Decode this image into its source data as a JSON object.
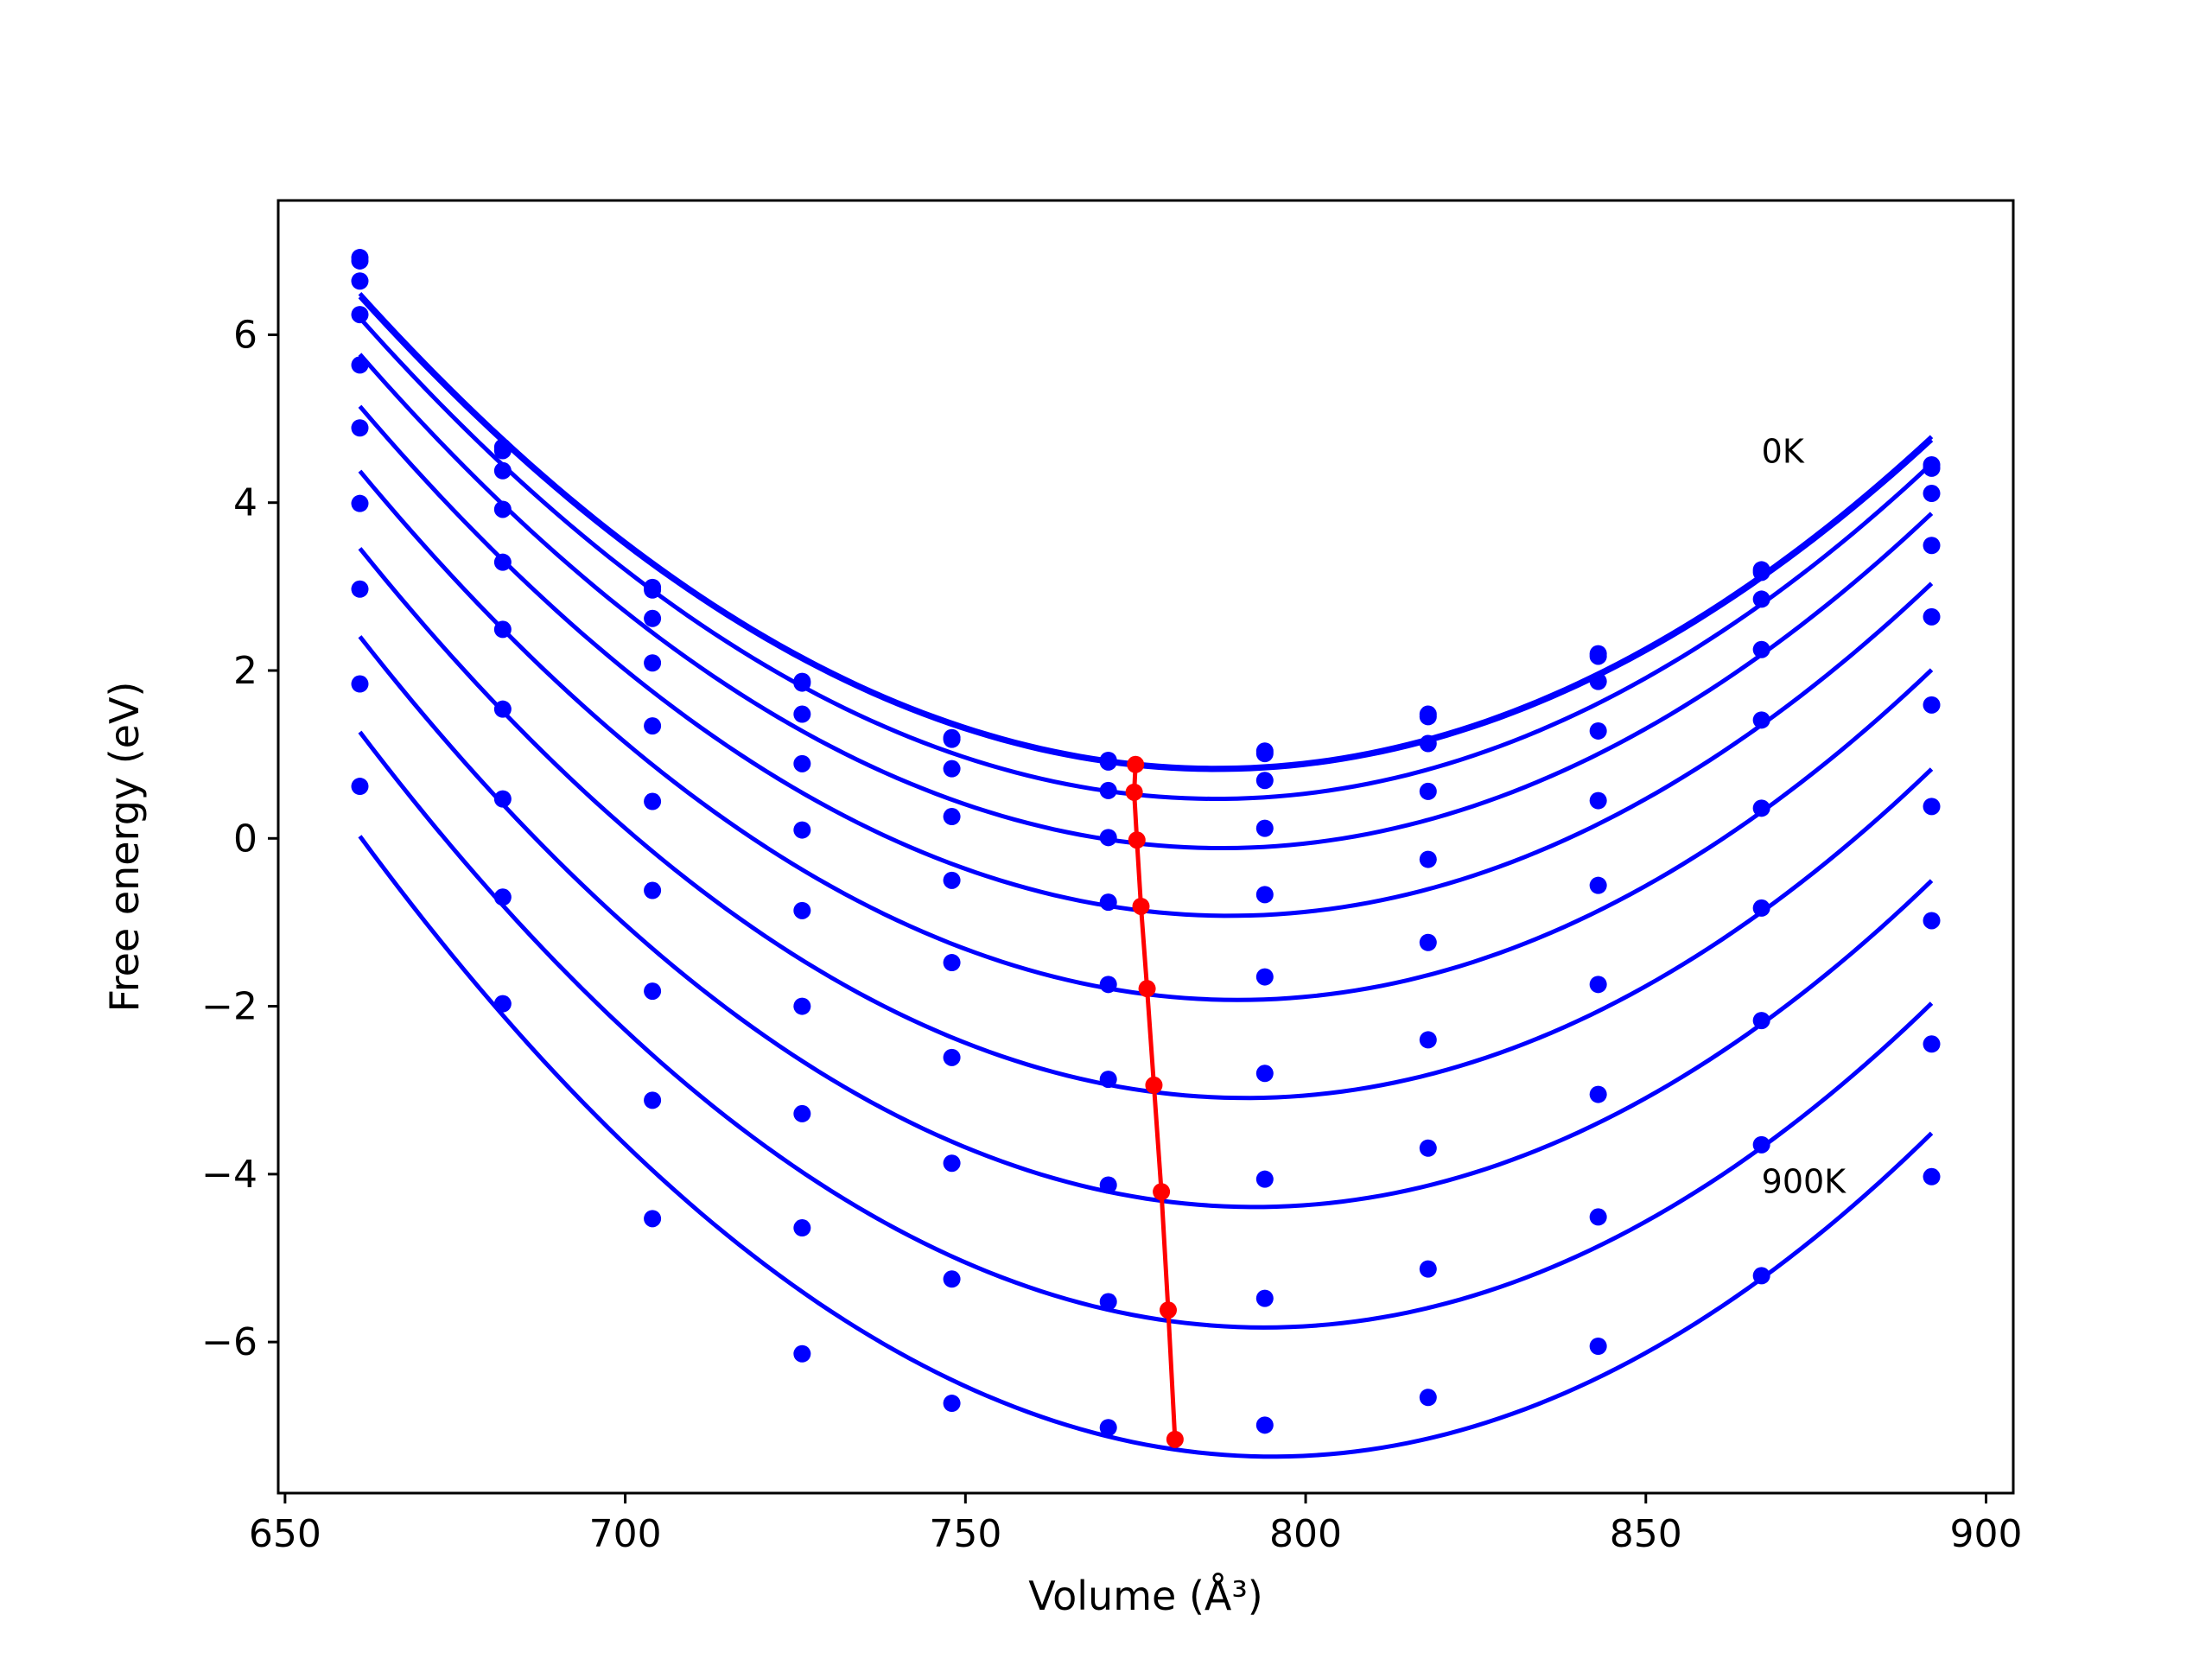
{
  "chart_data": {
    "type": "line",
    "title": "",
    "xlabel": "Volume (Å³)",
    "ylabel": "Free energy (eV)",
    "xlim": [
      649,
      904
    ],
    "ylim": [
      -7.8,
      7.6
    ],
    "xticks": [
      650,
      700,
      750,
      800,
      850,
      900
    ],
    "yticks": [
      -6,
      -4,
      -2,
      0,
      2,
      4,
      6
    ],
    "xtick_labels": [
      "650",
      "700",
      "750",
      "800",
      "850",
      "900"
    ],
    "ytick_labels": [
      "−6",
      "−4",
      "−2",
      "0",
      "2",
      "4",
      "6"
    ],
    "grid": false,
    "legend": "none",
    "annotations": [
      {
        "text": "0K",
        "x": 867,
        "y": 4.6
      },
      {
        "text": "900K",
        "x": 867,
        "y": -4.1
      }
    ],
    "x": [
      661,
      682,
      704,
      726,
      748,
      771,
      794,
      818,
      843,
      867,
      892
    ],
    "series": [
      {
        "values": [
          6.92,
          4.66,
          2.99,
          1.87,
          1.2,
          0.93,
          1.04,
          1.48,
          2.2,
          3.2,
          4.45
        ]
      },
      {
        "values": [
          6.88,
          4.62,
          2.96,
          1.85,
          1.18,
          0.91,
          1.01,
          1.45,
          2.17,
          3.17,
          4.41
        ]
      },
      {
        "values": [
          6.64,
          4.38,
          2.62,
          1.48,
          0.83,
          0.57,
          0.69,
          1.13,
          1.87,
          2.85,
          4.11
        ]
      },
      {
        "values": [
          6.24,
          3.92,
          2.09,
          0.89,
          0.26,
          0.01,
          0.12,
          0.56,
          1.28,
          2.25,
          3.49
        ]
      },
      {
        "values": [
          5.64,
          3.29,
          1.34,
          0.1,
          -0.5,
          -0.76,
          -0.67,
          -0.25,
          0.45,
          1.41,
          2.64
        ]
      },
      {
        "values": [
          4.89,
          2.49,
          0.44,
          -0.86,
          -1.48,
          -1.74,
          -1.65,
          -1.24,
          -0.56,
          0.36,
          1.59
        ]
      },
      {
        "values": [
          3.99,
          1.54,
          -0.62,
          -2.0,
          -2.61,
          -2.87,
          -2.8,
          -2.4,
          -1.74,
          -0.83,
          0.38
        ]
      },
      {
        "values": [
          2.97,
          0.47,
          -1.82,
          -3.28,
          -3.87,
          -4.13,
          -4.06,
          -3.69,
          -3.05,
          -2.17,
          -0.98
        ]
      },
      {
        "values": [
          1.84,
          -0.7,
          -3.12,
          -4.64,
          -5.25,
          -5.52,
          -5.48,
          -5.13,
          -4.51,
          -3.65,
          -2.45
        ]
      },
      {
        "values": [
          0.62,
          -1.97,
          -4.53,
          -6.14,
          -6.73,
          -7.02,
          -6.99,
          -6.66,
          -6.05,
          -5.21,
          -4.03
        ]
      }
    ],
    "equilibrium": {
      "x": [
        775.0,
        774.8,
        775.2,
        775.8,
        776.7,
        777.7,
        778.8,
        779.8,
        780.8
      ],
      "y": [
        0.88,
        0.55,
        -0.02,
        -0.81,
        -1.79,
        -2.94,
        -4.21,
        -5.62,
        -7.16
      ]
    },
    "colors": {
      "series": "#0000ff",
      "equilibrium": "#ff0000",
      "axes": "#000000",
      "background": "#ffffff"
    }
  }
}
